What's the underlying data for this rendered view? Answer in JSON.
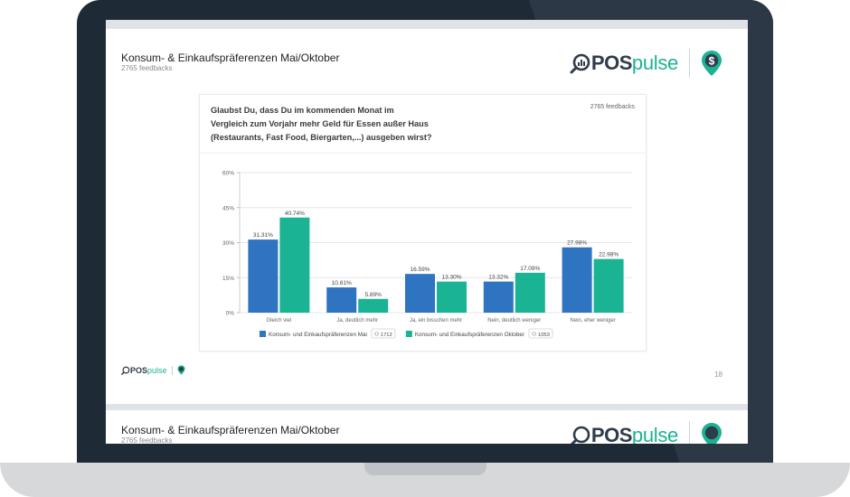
{
  "slide": {
    "title": "Konsum- & Einkaufspräferenzen Mai/Oktober",
    "subtitle": "2765 feedbacks",
    "logo_bold": "POS",
    "logo_light": "pulse",
    "page_number": "18"
  },
  "slide2": {
    "title": "Konsum- & Einkaufspräferenzen Mai/Oktober",
    "subtitle": "2765 feedbacks"
  },
  "card": {
    "question_lines": [
      "Glaubst Du, dass Du im kommenden Monat im",
      "Vergleich zum Vorjahr mehr Geld für Essen außer Haus",
      "(Restaurants, Fast Food, Biergarten,...) ausgeben wirst?"
    ],
    "feedbacks": "2765 feedbacks"
  },
  "colors": {
    "mai": "#2f74c0",
    "oktober": "#1ab394",
    "grid": "#e6e6e6",
    "axis_text": "#666666"
  },
  "chart_data": {
    "type": "bar",
    "categories": [
      "Gleich viel",
      "Ja, deutlich mehr",
      "Ja, ein bisschen mehr",
      "Nein, deutlich weniger",
      "Nein, eher weniger"
    ],
    "series": [
      {
        "name": "Konsum- und Einkaufspräferenzen Mai",
        "count": "1712",
        "values": [
          31.31,
          10.81,
          16.59,
          13.32,
          27.98
        ],
        "labels": [
          "31.31%",
          "10.81%",
          "16.59%",
          "13.32%",
          "27.98%"
        ]
      },
      {
        "name": "Konsum- und Einkaufspräferenzen Oktober",
        "count": "1053",
        "values": [
          40.74,
          5.89,
          13.3,
          17.09,
          22.98
        ],
        "labels": [
          "40.74%",
          "5.89%",
          "13.30%",
          "17.09%",
          "22.98%"
        ]
      }
    ],
    "yticks": [
      0,
      15,
      30,
      45,
      60
    ],
    "ytick_labels": [
      "0%",
      "15%",
      "30%",
      "45%",
      "60%"
    ],
    "ylim": [
      0,
      60
    ],
    "legend_position": "bottom",
    "grid": true
  }
}
